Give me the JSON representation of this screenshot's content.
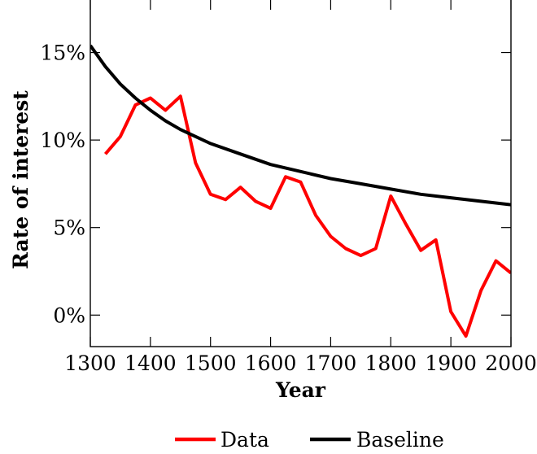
{
  "chart_data": {
    "type": "line",
    "title": "",
    "xlabel": "Year",
    "ylabel": "Rate of interest",
    "xlim": [
      1300,
      2000
    ],
    "ylim": [
      -1.8,
      18
    ],
    "x_ticks": [
      1300,
      1400,
      1500,
      1600,
      1700,
      1800,
      1900,
      2000
    ],
    "x_tick_labels": [
      "1300",
      "1400",
      "1500",
      "1600",
      "1700",
      "1800",
      "1900",
      "2000"
    ],
    "y_ticks": [
      0,
      5,
      10,
      15
    ],
    "y_tick_labels": [
      "0%",
      "5%",
      "10%",
      "15%"
    ],
    "grid": false,
    "legend_position": "bottom-center",
    "series": [
      {
        "name": "Data",
        "color": "#ff0000",
        "x": [
          1325,
          1350,
          1375,
          1400,
          1425,
          1450,
          1475,
          1500,
          1525,
          1550,
          1575,
          1600,
          1625,
          1650,
          1675,
          1700,
          1725,
          1750,
          1775,
          1800,
          1825,
          1850,
          1875,
          1900,
          1925,
          1950,
          1975,
          2000
        ],
        "y": [
          9.2,
          10.2,
          12.0,
          12.4,
          11.7,
          12.5,
          8.7,
          6.9,
          6.6,
          7.3,
          6.5,
          6.1,
          7.9,
          7.6,
          5.7,
          4.5,
          3.8,
          3.4,
          3.8,
          6.8,
          5.2,
          3.7,
          4.3,
          0.2,
          -1.2,
          1.4,
          3.1,
          2.4
        ]
      },
      {
        "name": "Baseline",
        "color": "#000000",
        "x": [
          1300,
          1325,
          1350,
          1375,
          1400,
          1425,
          1450,
          1475,
          1500,
          1550,
          1600,
          1650,
          1700,
          1750,
          1800,
          1850,
          1900,
          1950,
          2000
        ],
        "y": [
          15.4,
          14.2,
          13.2,
          12.4,
          11.7,
          11.1,
          10.6,
          10.2,
          9.8,
          9.2,
          8.6,
          8.2,
          7.8,
          7.5,
          7.2,
          6.9,
          6.7,
          6.5,
          6.3
        ]
      }
    ]
  }
}
